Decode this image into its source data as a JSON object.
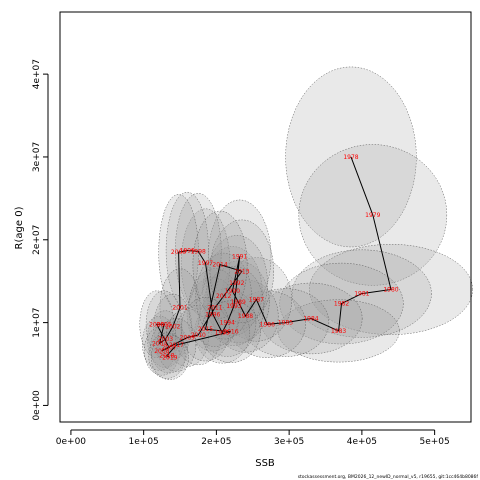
{
  "chart_data": {
    "type": "scatter",
    "xlabel": "SSB",
    "ylabel": "R(age 0)",
    "xlim": [
      -15000,
      550000
    ],
    "ylim": [
      -2000000,
      47500000
    ],
    "x_ticks": [
      0,
      100000,
      200000,
      300000,
      400000,
      500000
    ],
    "x_tick_labels": [
      "0e+00",
      "1e+05",
      "2e+05",
      "3e+05",
      "4e+05",
      "5e+05"
    ],
    "y_ticks": [
      0,
      10000000,
      20000000,
      30000000,
      40000000
    ],
    "y_tick_labels": [
      "0e+00",
      "1e+07",
      "2e+07",
      "3e+07",
      "4e+07"
    ],
    "grid": false,
    "legend": "none",
    "line_color": "#000000",
    "label_color": "#ff0000",
    "ellipse_fill": "#9a9a9a",
    "ellipse_stroke": "#555555",
    "points": [
      {
        "label": "1978",
        "x": 385000,
        "y": 30000000
      },
      {
        "label": "1979",
        "x": 415000,
        "y": 23000000
      },
      {
        "label": "1980",
        "x": 440000,
        "y": 14000000
      },
      {
        "label": "1981",
        "x": 400000,
        "y": 13500000
      },
      {
        "label": "1982",
        "x": 372000,
        "y": 12300000
      },
      {
        "label": "1983",
        "x": 368000,
        "y": 9000000
      },
      {
        "label": "1984",
        "x": 330000,
        "y": 10500000
      },
      {
        "label": "1985",
        "x": 295000,
        "y": 10000000
      },
      {
        "label": "1986",
        "x": 270000,
        "y": 9800000
      },
      {
        "label": "1987",
        "x": 255000,
        "y": 12800000
      },
      {
        "label": "1988",
        "x": 240000,
        "y": 10800000
      },
      {
        "label": "1989",
        "x": 230000,
        "y": 12500000
      },
      {
        "label": "1990",
        "x": 222000,
        "y": 13800000
      },
      {
        "label": "1991",
        "x": 232000,
        "y": 18000000
      },
      {
        "label": "1992",
        "x": 228000,
        "y": 14800000
      },
      {
        "label": "1993",
        "x": 224000,
        "y": 12000000
      },
      {
        "label": "1994",
        "x": 215000,
        "y": 10000000
      },
      {
        "label": "1995",
        "x": 208000,
        "y": 8800000
      },
      {
        "label": "1996",
        "x": 195000,
        "y": 11000000
      },
      {
        "label": "1997",
        "x": 185000,
        "y": 17200000
      },
      {
        "label": "1998",
        "x": 175000,
        "y": 18600000
      },
      {
        "label": "1999",
        "x": 160000,
        "y": 18700000
      },
      {
        "label": "2000",
        "x": 148000,
        "y": 18500000
      },
      {
        "label": "2001",
        "x": 150000,
        "y": 11800000
      },
      {
        "label": "2002",
        "x": 140000,
        "y": 9500000
      },
      {
        "label": "2003",
        "x": 130000,
        "y": 8000000
      },
      {
        "label": "2004",
        "x": 122000,
        "y": 7500000
      },
      {
        "label": "2005",
        "x": 128000,
        "y": 9800000
      },
      {
        "label": "2006",
        "x": 118000,
        "y": 9800000
      },
      {
        "label": "2007",
        "x": 135000,
        "y": 7000000
      },
      {
        "label": "2008",
        "x": 125000,
        "y": 6600000
      },
      {
        "label": "2009",
        "x": 160000,
        "y": 8200000
      },
      {
        "label": "2010",
        "x": 175000,
        "y": 8500000
      },
      {
        "label": "2011",
        "x": 198000,
        "y": 11800000
      },
      {
        "label": "2012",
        "x": 210000,
        "y": 13200000
      },
      {
        "label": "2013",
        "x": 235000,
        "y": 16200000
      },
      {
        "label": "2014",
        "x": 205000,
        "y": 17000000
      },
      {
        "label": "2015",
        "x": 185000,
        "y": 9200000
      },
      {
        "label": "2016",
        "x": 220000,
        "y": 8900000
      },
      {
        "label": "2017",
        "x": 145000,
        "y": 7300000
      },
      {
        "label": "2018",
        "x": 132000,
        "y": 6000000
      },
      {
        "label": "2019",
        "x": 136000,
        "y": 5800000
      }
    ]
  },
  "credit_text": "stockassessment.org, BM2026_12_newID_normal_v5, r19655, git:1cc464b8086f"
}
